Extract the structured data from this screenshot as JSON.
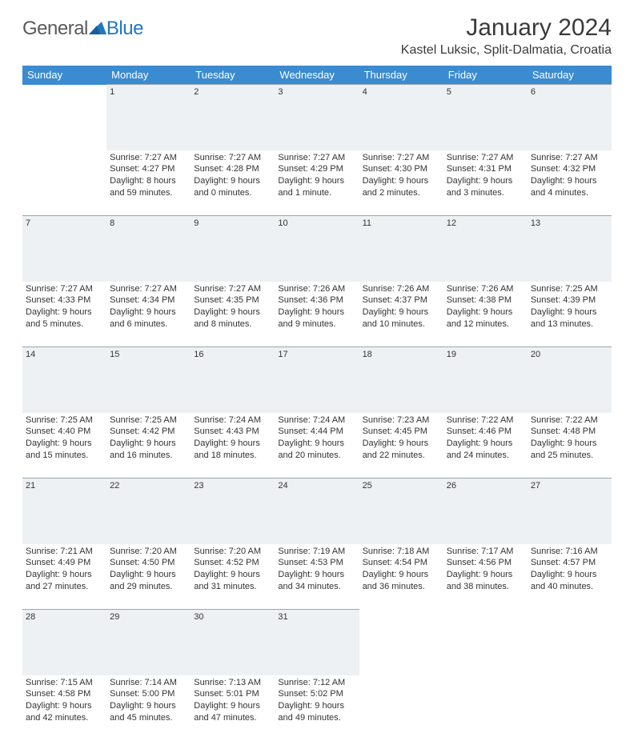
{
  "brand": {
    "textGray": "General",
    "textBlue": "Blue"
  },
  "title": "January 2024",
  "location": "Kastel Luksic, Split-Dalmatia, Croatia",
  "colors": {
    "headerBg": "#3b8bd0",
    "headerText": "#ffffff",
    "dayNumBg": "#eef1f3",
    "dayNumBorder": "#9aa6b0",
    "bodyText": "#333333",
    "brandGray": "#5a5a5a",
    "brandBlue": "#2176c1"
  },
  "dayNames": [
    "Sunday",
    "Monday",
    "Tuesday",
    "Wednesday",
    "Thursday",
    "Friday",
    "Saturday"
  ],
  "weeks": [
    {
      "nums": [
        "",
        "1",
        "2",
        "3",
        "4",
        "5",
        "6"
      ],
      "cells": [
        {
          "lines": []
        },
        {
          "lines": [
            "Sunrise: 7:27 AM",
            "Sunset: 4:27 PM",
            "Daylight: 8 hours",
            "and 59 minutes."
          ]
        },
        {
          "lines": [
            "Sunrise: 7:27 AM",
            "Sunset: 4:28 PM",
            "Daylight: 9 hours",
            "and 0 minutes."
          ]
        },
        {
          "lines": [
            "Sunrise: 7:27 AM",
            "Sunset: 4:29 PM",
            "Daylight: 9 hours",
            "and 1 minute."
          ]
        },
        {
          "lines": [
            "Sunrise: 7:27 AM",
            "Sunset: 4:30 PM",
            "Daylight: 9 hours",
            "and 2 minutes."
          ]
        },
        {
          "lines": [
            "Sunrise: 7:27 AM",
            "Sunset: 4:31 PM",
            "Daylight: 9 hours",
            "and 3 minutes."
          ]
        },
        {
          "lines": [
            "Sunrise: 7:27 AM",
            "Sunset: 4:32 PM",
            "Daylight: 9 hours",
            "and 4 minutes."
          ]
        }
      ]
    },
    {
      "nums": [
        "7",
        "8",
        "9",
        "10",
        "11",
        "12",
        "13"
      ],
      "cells": [
        {
          "lines": [
            "Sunrise: 7:27 AM",
            "Sunset: 4:33 PM",
            "Daylight: 9 hours",
            "and 5 minutes."
          ]
        },
        {
          "lines": [
            "Sunrise: 7:27 AM",
            "Sunset: 4:34 PM",
            "Daylight: 9 hours",
            "and 6 minutes."
          ]
        },
        {
          "lines": [
            "Sunrise: 7:27 AM",
            "Sunset: 4:35 PM",
            "Daylight: 9 hours",
            "and 8 minutes."
          ]
        },
        {
          "lines": [
            "Sunrise: 7:26 AM",
            "Sunset: 4:36 PM",
            "Daylight: 9 hours",
            "and 9 minutes."
          ]
        },
        {
          "lines": [
            "Sunrise: 7:26 AM",
            "Sunset: 4:37 PM",
            "Daylight: 9 hours",
            "and 10 minutes."
          ]
        },
        {
          "lines": [
            "Sunrise: 7:26 AM",
            "Sunset: 4:38 PM",
            "Daylight: 9 hours",
            "and 12 minutes."
          ]
        },
        {
          "lines": [
            "Sunrise: 7:25 AM",
            "Sunset: 4:39 PM",
            "Daylight: 9 hours",
            "and 13 minutes."
          ]
        }
      ]
    },
    {
      "nums": [
        "14",
        "15",
        "16",
        "17",
        "18",
        "19",
        "20"
      ],
      "cells": [
        {
          "lines": [
            "Sunrise: 7:25 AM",
            "Sunset: 4:40 PM",
            "Daylight: 9 hours",
            "and 15 minutes."
          ]
        },
        {
          "lines": [
            "Sunrise: 7:25 AM",
            "Sunset: 4:42 PM",
            "Daylight: 9 hours",
            "and 16 minutes."
          ]
        },
        {
          "lines": [
            "Sunrise: 7:24 AM",
            "Sunset: 4:43 PM",
            "Daylight: 9 hours",
            "and 18 minutes."
          ]
        },
        {
          "lines": [
            "Sunrise: 7:24 AM",
            "Sunset: 4:44 PM",
            "Daylight: 9 hours",
            "and 20 minutes."
          ]
        },
        {
          "lines": [
            "Sunrise: 7:23 AM",
            "Sunset: 4:45 PM",
            "Daylight: 9 hours",
            "and 22 minutes."
          ]
        },
        {
          "lines": [
            "Sunrise: 7:22 AM",
            "Sunset: 4:46 PM",
            "Daylight: 9 hours",
            "and 24 minutes."
          ]
        },
        {
          "lines": [
            "Sunrise: 7:22 AM",
            "Sunset: 4:48 PM",
            "Daylight: 9 hours",
            "and 25 minutes."
          ]
        }
      ]
    },
    {
      "nums": [
        "21",
        "22",
        "23",
        "24",
        "25",
        "26",
        "27"
      ],
      "cells": [
        {
          "lines": [
            "Sunrise: 7:21 AM",
            "Sunset: 4:49 PM",
            "Daylight: 9 hours",
            "and 27 minutes."
          ]
        },
        {
          "lines": [
            "Sunrise: 7:20 AM",
            "Sunset: 4:50 PM",
            "Daylight: 9 hours",
            "and 29 minutes."
          ]
        },
        {
          "lines": [
            "Sunrise: 7:20 AM",
            "Sunset: 4:52 PM",
            "Daylight: 9 hours",
            "and 31 minutes."
          ]
        },
        {
          "lines": [
            "Sunrise: 7:19 AM",
            "Sunset: 4:53 PM",
            "Daylight: 9 hours",
            "and 34 minutes."
          ]
        },
        {
          "lines": [
            "Sunrise: 7:18 AM",
            "Sunset: 4:54 PM",
            "Daylight: 9 hours",
            "and 36 minutes."
          ]
        },
        {
          "lines": [
            "Sunrise: 7:17 AM",
            "Sunset: 4:56 PM",
            "Daylight: 9 hours",
            "and 38 minutes."
          ]
        },
        {
          "lines": [
            "Sunrise: 7:16 AM",
            "Sunset: 4:57 PM",
            "Daylight: 9 hours",
            "and 40 minutes."
          ]
        }
      ]
    },
    {
      "nums": [
        "28",
        "29",
        "30",
        "31",
        "",
        "",
        ""
      ],
      "cells": [
        {
          "lines": [
            "Sunrise: 7:15 AM",
            "Sunset: 4:58 PM",
            "Daylight: 9 hours",
            "and 42 minutes."
          ]
        },
        {
          "lines": [
            "Sunrise: 7:14 AM",
            "Sunset: 5:00 PM",
            "Daylight: 9 hours",
            "and 45 minutes."
          ]
        },
        {
          "lines": [
            "Sunrise: 7:13 AM",
            "Sunset: 5:01 PM",
            "Daylight: 9 hours",
            "and 47 minutes."
          ]
        },
        {
          "lines": [
            "Sunrise: 7:12 AM",
            "Sunset: 5:02 PM",
            "Daylight: 9 hours",
            "and 49 minutes."
          ]
        },
        {
          "lines": []
        },
        {
          "lines": []
        },
        {
          "lines": []
        }
      ]
    }
  ]
}
